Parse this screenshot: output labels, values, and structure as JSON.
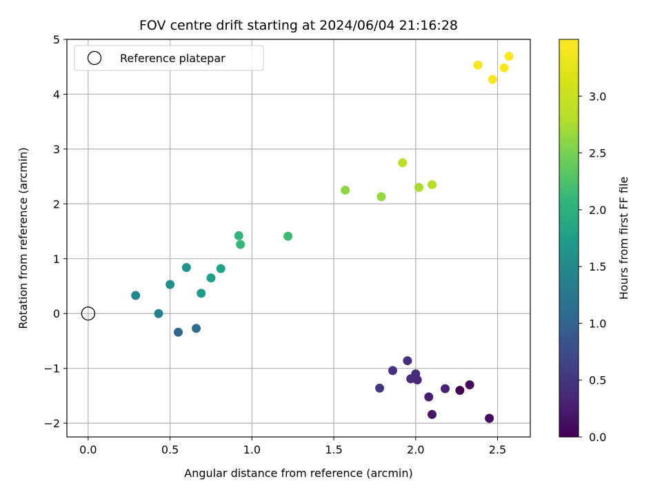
{
  "chart_data": {
    "type": "scatter",
    "title": "FOV centre drift starting at 2024/06/04 21:16:28",
    "xlabel": "Angular distance from reference (arcmin)",
    "ylabel": "Rotation from reference (arcmin)",
    "xlim": [
      -0.13,
      2.7
    ],
    "ylim": [
      -2.25,
      5.0
    ],
    "xticks": [
      0.0,
      0.5,
      1.0,
      1.5,
      2.0,
      2.5
    ],
    "xtick_labels": [
      "0.0",
      "0.5",
      "1.0",
      "1.5",
      "2.0",
      "2.5"
    ],
    "yticks": [
      -2,
      -1,
      0,
      1,
      2,
      3,
      4,
      5
    ],
    "ytick_labels": [
      "−2",
      "−1",
      "0",
      "1",
      "2",
      "3",
      "4",
      "5"
    ],
    "grid": true,
    "legend": {
      "position": "top-left",
      "entries": [
        {
          "label": "Reference platepar",
          "marker": "open-circle"
        }
      ]
    },
    "reference_point": {
      "x": 0.0,
      "y": 0.0
    },
    "colorbar": {
      "label": "Hours from first FF file",
      "colormap": "viridis",
      "range": [
        0.0,
        3.5
      ],
      "ticks": [
        0.0,
        0.5,
        1.0,
        1.5,
        2.0,
        2.5,
        3.0
      ],
      "tick_labels": [
        "0.0",
        "0.5",
        "1.0",
        "1.5",
        "2.0",
        "2.5",
        "3.0"
      ]
    },
    "points": [
      {
        "x": 2.27,
        "y": -1.4,
        "hours": 0.0
      },
      {
        "x": 2.33,
        "y": -1.3,
        "hours": 0.06
      },
      {
        "x": 2.45,
        "y": -1.91,
        "hours": 0.12
      },
      {
        "x": 2.1,
        "y": -1.84,
        "hours": 0.2
      },
      {
        "x": 2.08,
        "y": -1.52,
        "hours": 0.25
      },
      {
        "x": 2.18,
        "y": -1.37,
        "hours": 0.3
      },
      {
        "x": 2.01,
        "y": -1.21,
        "hours": 0.35
      },
      {
        "x": 1.97,
        "y": -1.19,
        "hours": 0.4
      },
      {
        "x": 2.0,
        "y": -1.1,
        "hours": 0.4
      },
      {
        "x": 1.95,
        "y": -0.86,
        "hours": 0.45
      },
      {
        "x": 1.86,
        "y": -1.04,
        "hours": 0.45
      },
      {
        "x": 1.78,
        "y": -1.36,
        "hours": 0.5
      },
      {
        "x": 0.55,
        "y": -0.34,
        "hours": 1.05
      },
      {
        "x": 0.66,
        "y": -0.27,
        "hours": 1.1
      },
      {
        "x": 0.43,
        "y": 0.0,
        "hours": 1.35
      },
      {
        "x": 0.29,
        "y": 0.33,
        "hours": 1.45
      },
      {
        "x": 0.5,
        "y": 0.53,
        "hours": 1.55
      },
      {
        "x": 0.6,
        "y": 0.84,
        "hours": 1.6
      },
      {
        "x": 0.69,
        "y": 0.37,
        "hours": 1.7
      },
      {
        "x": 0.75,
        "y": 0.65,
        "hours": 1.75
      },
      {
        "x": 0.81,
        "y": 0.82,
        "hours": 1.8
      },
      {
        "x": 0.92,
        "y": 1.42,
        "hours": 2.05
      },
      {
        "x": 0.93,
        "y": 1.26,
        "hours": 2.1
      },
      {
        "x": 1.22,
        "y": 1.41,
        "hours": 2.15
      },
      {
        "x": 1.57,
        "y": 2.25,
        "hours": 2.6
      },
      {
        "x": 1.79,
        "y": 2.13,
        "hours": 2.65
      },
      {
        "x": 2.02,
        "y": 2.3,
        "hours": 2.75
      },
      {
        "x": 2.1,
        "y": 2.35,
        "hours": 2.8
      },
      {
        "x": 1.92,
        "y": 2.75,
        "hours": 2.85
      },
      {
        "x": 2.38,
        "y": 4.53,
        "hours": 3.42
      },
      {
        "x": 2.47,
        "y": 4.27,
        "hours": 3.45
      },
      {
        "x": 2.54,
        "y": 4.48,
        "hours": 3.47
      },
      {
        "x": 2.57,
        "y": 4.69,
        "hours": 3.48
      }
    ]
  }
}
